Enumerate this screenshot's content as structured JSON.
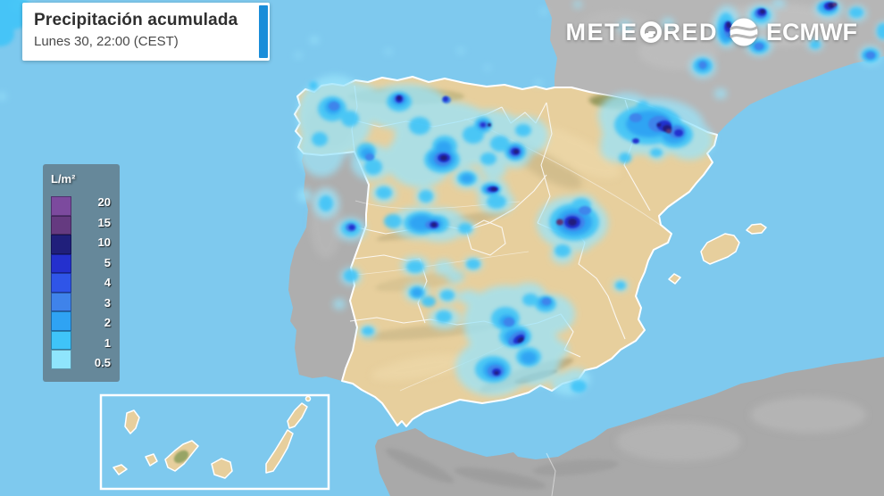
{
  "header": {
    "title": "Precipitación acumulada",
    "subtitle": "Lunes 30, 22:00 (CEST)"
  },
  "branding": {
    "meteored_pre": "METE",
    "meteored_post": "RED",
    "ecmwf": "ECMWF"
  },
  "legend": {
    "unit": "L/m²",
    "stops": [
      {
        "label": "20",
        "color": "#7c4a9e"
      },
      {
        "label": "15",
        "color": "#653a80"
      },
      {
        "label": "10",
        "color": "#201f7b"
      },
      {
        "label": "5",
        "color": "#2430ce"
      },
      {
        "label": "4",
        "color": "#2f55e8"
      },
      {
        "label": "3",
        "color": "#3f83ea"
      },
      {
        "label": "2",
        "color": "#2fa3f3"
      },
      {
        "label": "1",
        "color": "#3fc4f8"
      },
      {
        "label": "0.5",
        "color": "#8fe5fc"
      }
    ]
  },
  "map": {
    "colors": {
      "sea": "#7ec9ee",
      "focus_country_land": "#e7cf9d",
      "other_land": "#b3b3b3",
      "country_border": "#ffffff",
      "title_accent": "#1a8dd9"
    }
  }
}
